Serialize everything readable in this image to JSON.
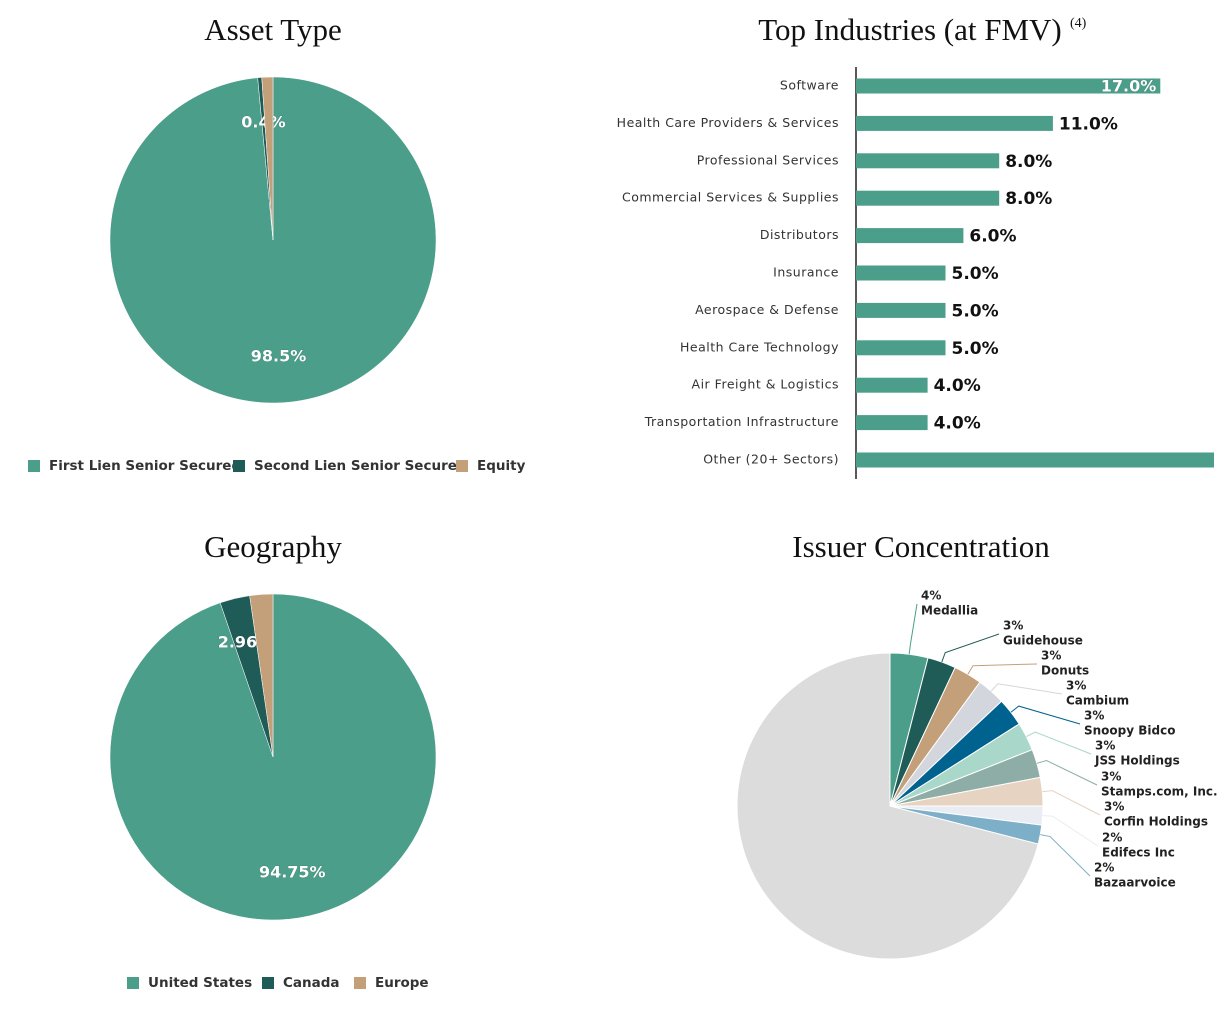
{
  "chart_data": [
    {
      "type": "pie",
      "title": "Asset Type",
      "categories": [
        "First Lien Senior Secured",
        "Second Lien Senior Secured",
        "Equity"
      ],
      "values": [
        98.5,
        0.4,
        1.1
      ],
      "value_labels": [
        "98.5%",
        "0.4%",
        null
      ],
      "colors": [
        "#4a9e8a",
        "#1f5c57",
        "#c4a07a"
      ],
      "legend": "bottom"
    },
    {
      "type": "bar",
      "orientation": "horizontal",
      "title": "Top Industries (at FMV)",
      "title_note": "(4)",
      "categories": [
        "Software",
        "Health Care Providers & Services",
        "Professional Services",
        "Commercial Services & Supplies",
        "Distributors",
        "Insurance",
        "Aerospace & Defense",
        "Health Care Technology",
        "Air Freight & Logistics",
        "Transportation Infrastructure",
        "Other (20+ Sectors)"
      ],
      "values": [
        17,
        11,
        8,
        8,
        6,
        5,
        5,
        5,
        4,
        4,
        20
      ],
      "value_labels": [
        "17.0%",
        "11.0%",
        "8.0%",
        "8.0%",
        "6.0%",
        "5.0%",
        "5.0%",
        "5.0%",
        "4.0%",
        "4.0%",
        null
      ],
      "color": "#4a9e8a"
    },
    {
      "type": "pie",
      "title": "Geography",
      "categories": [
        "United States",
        "Canada",
        "Europe"
      ],
      "values": [
        94.75,
        2.96,
        2.29
      ],
      "value_labels": [
        "94.75%",
        "2.96%",
        null
      ],
      "colors": [
        "#4a9e8a",
        "#1f5c57",
        "#c4a07a"
      ],
      "legend": "bottom"
    },
    {
      "type": "pie",
      "title": "Issuer Concentration",
      "labels": "callout",
      "categories": [
        "Medallia",
        "Guidehouse",
        "Donuts",
        "Cambium",
        "Snoopy Bidco",
        "JSS Holdings",
        "Stamps.com, Inc.",
        "Corfin Holdings",
        "Edifecs Inc",
        "Bazaarvoice",
        null
      ],
      "values": [
        4,
        3,
        3,
        3,
        3,
        3,
        3,
        3,
        2,
        2,
        71
      ],
      "value_labels": [
        "4%",
        "3%",
        "3%",
        "3%",
        "3%",
        "3%",
        "3%",
        "3%",
        "2%",
        "2%",
        null
      ],
      "colors": [
        "#4a9e8a",
        "#1f5c57",
        "#c4a07a",
        "#d3d6dc",
        "#00628f",
        "#a9d7c9",
        "#8eada6",
        "#e6d3c2",
        "#e9ecf2",
        "#7eafc9",
        "#dcdcdc"
      ]
    }
  ]
}
